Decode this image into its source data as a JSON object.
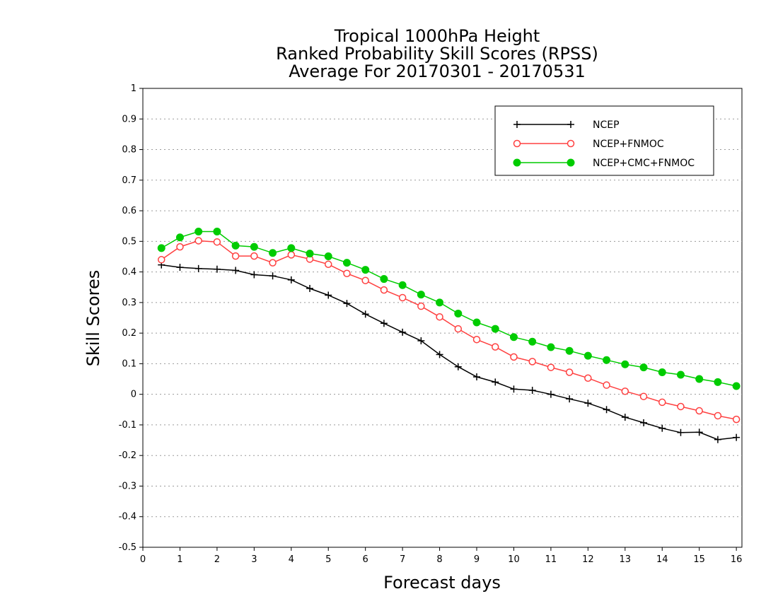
{
  "chart_data": {
    "type": "line",
    "title_lines": [
      "Tropical 1000hPa Height",
      "Ranked Probability Skill Scores (RPSS)",
      "Average For 20170301 - 20170531"
    ],
    "xlabel": "Forecast days",
    "ylabel": "Skill Scores",
    "xlim": [
      0,
      16.15
    ],
    "ylim": [
      -0.5,
      1
    ],
    "x_ticks": [
      "0",
      "1",
      "2",
      "3",
      "4",
      "5",
      "6",
      "7",
      "8",
      "9",
      "10",
      "11",
      "12",
      "13",
      "14",
      "15",
      "16"
    ],
    "y_ticks": [
      "1",
      "0.9",
      "0.8",
      "0.7",
      "0.6",
      "0.5",
      "0.4",
      "0.3",
      "0.2",
      "0.1",
      "0",
      "-0.1",
      "-0.2",
      "-0.3",
      "-0.4",
      "-0.5"
    ],
    "grid": "horizontal dotted",
    "legend_position": "top-right",
    "x": [
      0.5,
      1,
      1.5,
      2,
      2.5,
      3,
      3.5,
      4,
      4.5,
      5,
      5.5,
      6,
      6.5,
      7,
      7.5,
      8,
      8.5,
      9,
      9.5,
      10,
      10.5,
      11,
      11.5,
      12,
      12.5,
      13,
      13.5,
      14,
      14.5,
      15,
      15.5,
      16
    ],
    "series": [
      {
        "name": "NCEP",
        "color": "#000000",
        "marker": "plus",
        "values": [
          0.423,
          0.415,
          0.411,
          0.409,
          0.405,
          0.391,
          0.387,
          0.374,
          0.346,
          0.324,
          0.297,
          0.262,
          0.232,
          0.203,
          0.175,
          0.13,
          0.09,
          0.057,
          0.04,
          0.017,
          0.013,
          0.0,
          -0.015,
          -0.029,
          -0.05,
          -0.075,
          -0.093,
          -0.111,
          -0.125,
          -0.124,
          -0.148,
          -0.141
        ]
      },
      {
        "name": "NCEP+FNMOC",
        "color": "#ff4040",
        "marker": "open-circle",
        "values": [
          0.44,
          0.482,
          0.502,
          0.498,
          0.452,
          0.452,
          0.43,
          0.456,
          0.442,
          0.425,
          0.395,
          0.372,
          0.341,
          0.316,
          0.288,
          0.253,
          0.214,
          0.179,
          0.155,
          0.122,
          0.107,
          0.088,
          0.072,
          0.053,
          0.03,
          0.01,
          -0.007,
          -0.026,
          -0.04,
          -0.054,
          -0.07,
          -0.082
        ]
      },
      {
        "name": "NCEP+CMC+FNMOC",
        "color": "#00cc00",
        "marker": "filled-circle",
        "values": [
          0.478,
          0.513,
          0.532,
          0.532,
          0.486,
          0.482,
          0.462,
          0.478,
          0.46,
          0.451,
          0.43,
          0.407,
          0.377,
          0.357,
          0.326,
          0.3,
          0.264,
          0.235,
          0.214,
          0.187,
          0.172,
          0.154,
          0.142,
          0.126,
          0.112,
          0.098,
          0.088,
          0.072,
          0.064,
          0.05,
          0.04,
          0.027
        ]
      }
    ]
  }
}
